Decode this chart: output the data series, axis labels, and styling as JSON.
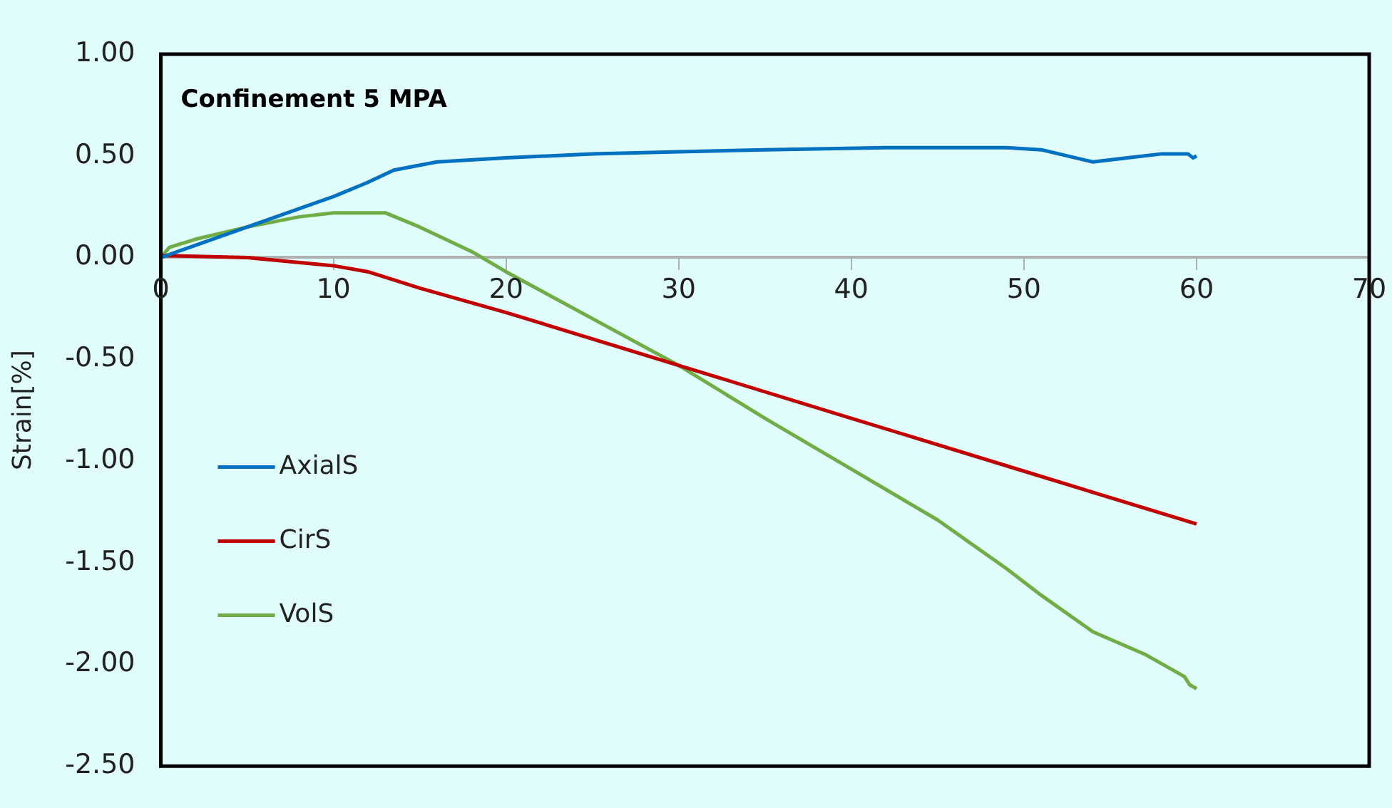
{
  "chart_data": {
    "type": "line",
    "title": "Confinement 5 MPA",
    "ylabel": "Strain[%]",
    "xlim": [
      0,
      70
    ],
    "xticks": [
      0,
      10,
      20,
      30,
      40,
      50,
      60,
      70
    ],
    "ylim": [
      -2.5,
      1
    ],
    "yticks": [
      {
        "value": 1,
        "label": "1.00"
      },
      {
        "value": 0.5,
        "label": "0.50"
      },
      {
        "value": 0,
        "label": "0.00"
      },
      {
        "value": -0.5,
        "label": "-0.50"
      },
      {
        "value": -1,
        "label": "-1.00"
      },
      {
        "value": -1.5,
        "label": "-1.50"
      },
      {
        "value": -2,
        "label": "-2.00"
      },
      {
        "value": -2.5,
        "label": "-2.50"
      }
    ],
    "legend": "left",
    "marker": "none",
    "line_style": "solid",
    "series": [
      {
        "name": "AxialS",
        "color": "#0070c0",
        "x": [
          0,
          5,
          10,
          12,
          13.5,
          16,
          20,
          25,
          30,
          35,
          42,
          49,
          51,
          54,
          56,
          58,
          59.5,
          59.8,
          60
        ],
        "values": [
          0,
          0.15,
          0.3,
          0.37,
          0.43,
          0.47,
          0.49,
          0.51,
          0.52,
          0.53,
          0.54,
          0.54,
          0.53,
          0.47,
          0.49,
          0.51,
          0.51,
          0.49,
          0.5
        ]
      },
      {
        "name": "CirS",
        "color": "#c00000",
        "x": [
          0,
          5,
          10,
          12,
          15,
          20,
          30,
          40,
          50,
          60
        ],
        "values": [
          0.01,
          0,
          -0.04,
          -0.07,
          -0.15,
          -0.27,
          -0.53,
          -0.79,
          -1.05,
          -1.31
        ]
      },
      {
        "name": "VolS",
        "color": "#70ad47",
        "x": [
          0,
          0.5,
          2,
          5,
          8,
          10,
          13,
          15,
          18,
          20,
          25,
          30,
          35,
          40,
          45,
          49,
          51,
          54,
          57,
          59.3,
          59.6,
          60
        ],
        "values": [
          0,
          0.05,
          0.09,
          0.15,
          0.2,
          0.22,
          0.22,
          0.15,
          0.03,
          -0.07,
          -0.3,
          -0.53,
          -0.79,
          -1.04,
          -1.29,
          -1.53,
          -1.66,
          -1.84,
          -1.95,
          -2.06,
          -2.1,
          -2.12
        ]
      }
    ]
  }
}
